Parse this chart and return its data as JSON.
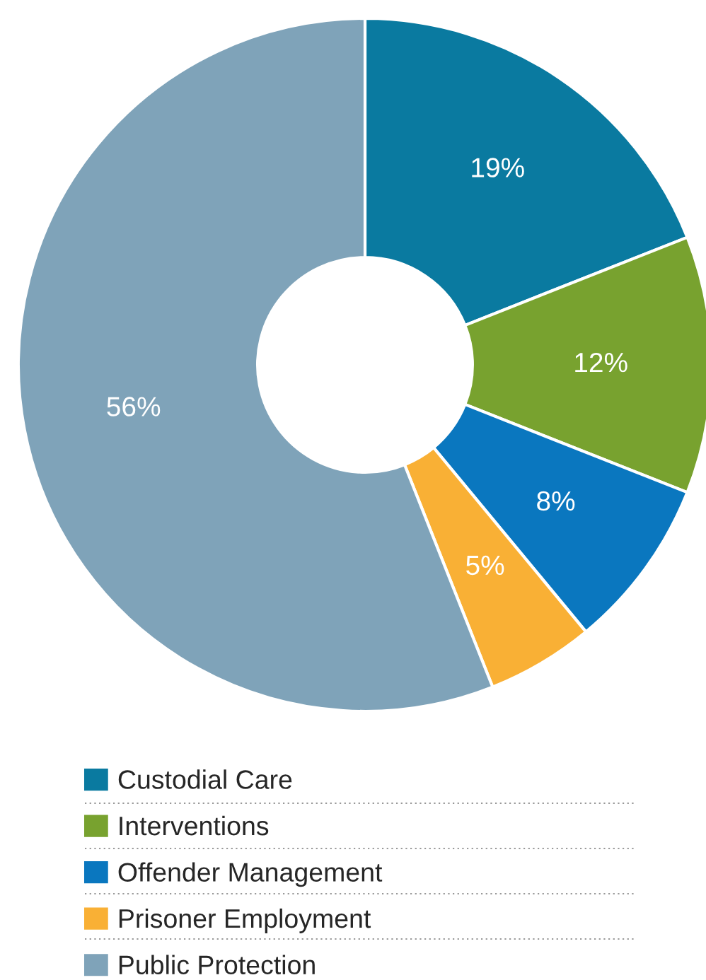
{
  "chart_data": {
    "type": "donut",
    "categories": [
      "Custodial Care",
      "Interventions",
      "Offender Management",
      "Prisoner Employment",
      "Public Protection"
    ],
    "values": [
      19,
      12,
      8,
      5,
      56
    ],
    "value_labels": [
      "19%",
      "12%",
      "8%",
      "5%",
      "56%"
    ],
    "colors": [
      "#0a7aa0",
      "#78a22f",
      "#0a77bf",
      "#f9b035",
      "#7fa3b9"
    ],
    "legend": "bottom"
  }
}
